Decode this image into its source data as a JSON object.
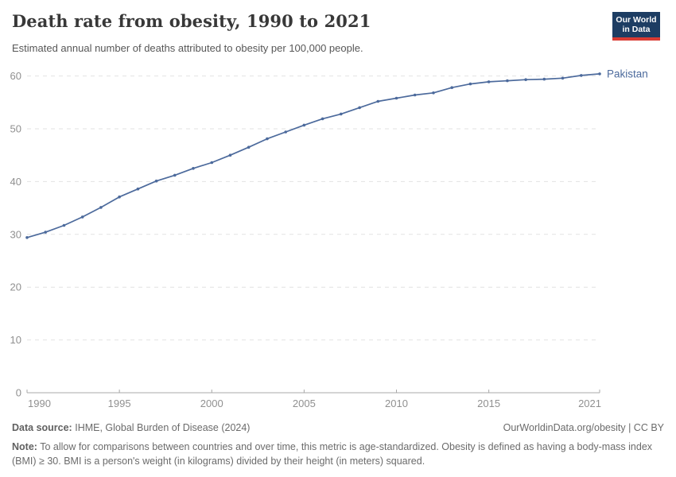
{
  "header": {
    "title": "Death rate from obesity, 1990 to 2021",
    "subtitle": "Estimated annual number of deaths attributed to obesity per 100,000 people.",
    "logo_line1": "Our World",
    "logo_line2": "in Data"
  },
  "chart_data": {
    "type": "line",
    "title": "Death rate from obesity, 1990 to 2021",
    "xlabel": "",
    "ylabel": "",
    "x": [
      1990,
      1991,
      1992,
      1993,
      1994,
      1995,
      1996,
      1997,
      1998,
      1999,
      2000,
      2001,
      2002,
      2003,
      2004,
      2005,
      2006,
      2007,
      2008,
      2009,
      2010,
      2011,
      2012,
      2013,
      2014,
      2015,
      2016,
      2017,
      2018,
      2019,
      2020,
      2021
    ],
    "series": [
      {
        "name": "Pakistan",
        "values": [
          29.4,
          30.4,
          31.7,
          33.3,
          35.1,
          37.1,
          38.6,
          40.1,
          41.2,
          42.5,
          43.6,
          45.0,
          46.5,
          48.1,
          49.4,
          50.7,
          51.9,
          52.8,
          54.0,
          55.2,
          55.8,
          56.4,
          56.8,
          57.8,
          58.5,
          58.9,
          59.1,
          59.3,
          59.4,
          59.6,
          60.1,
          60.4
        ]
      }
    ],
    "ylim": [
      0,
      60
    ],
    "yticks": [
      0,
      10,
      20,
      30,
      40,
      50,
      60
    ],
    "xticks": [
      1990,
      1995,
      2000,
      2005,
      2010,
      2015,
      2021
    ],
    "grid": "horizontal-dashed",
    "legend_position": "end-of-line-label",
    "entity_label": "Pakistan"
  },
  "colors": {
    "line": "#4c6a9c",
    "entity_label": "#4c6a9c",
    "gridline": "#e2e2e2",
    "axis": "#a8a8a8",
    "tick_label": "#909090",
    "logo_bg": "#1d3d63",
    "logo_stripe": "#d93b33"
  },
  "footer": {
    "source_label": "Data source:",
    "source_value": "IHME, Global Burden of Disease (2024)",
    "attribution": "OurWorldinData.org/obesity | CC BY",
    "note_label": "Note:",
    "note_text": "To allow for comparisons between countries and over time, this metric is age-standardized. Obesity is defined as having a body-mass index (BMI) ≥ 30. BMI is a person's weight (in kilograms) divided by their height (in meters) squared."
  }
}
